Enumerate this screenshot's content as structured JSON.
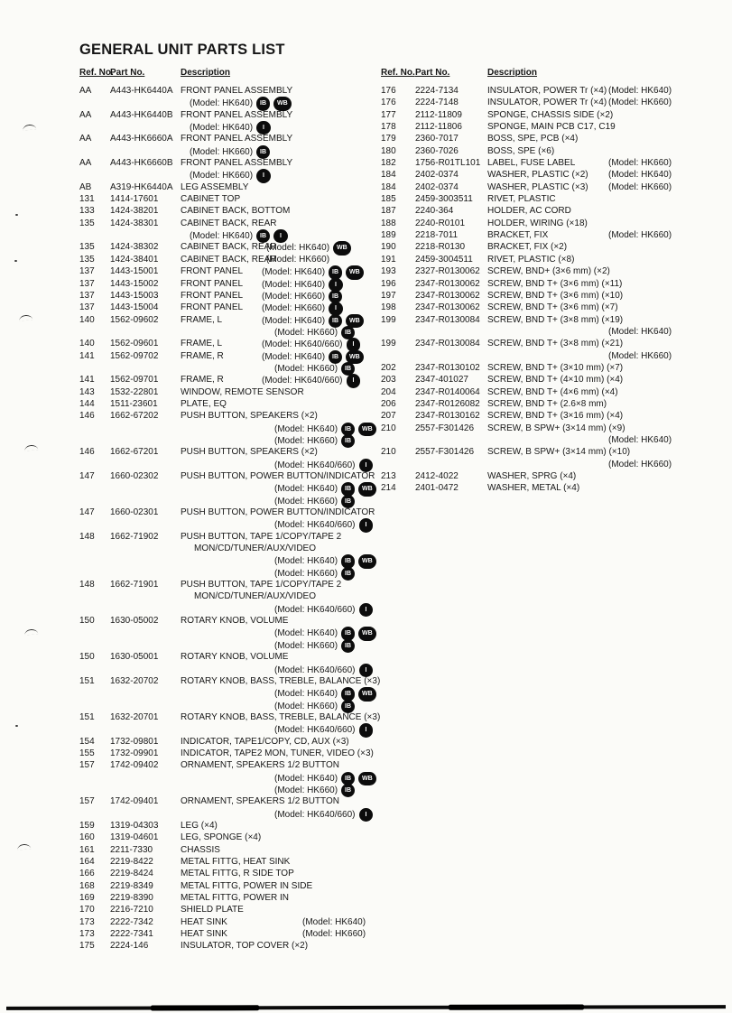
{
  "page": {
    "title": "GENERAL UNIT PARTS LIST",
    "headers": {
      "ref": "Ref. No.",
      "part": "Part No.",
      "desc": "Description"
    }
  },
  "badge_style": {
    "bg": "#0c0c0c",
    "fg": "#ffffff"
  },
  "columns": [
    {
      "name": "left",
      "lines": [
        {
          "ref": "AA",
          "part": "A443-HK6440A",
          "desc": "FRONT PANEL ASSEMBLY"
        },
        {
          "model": "(Model: HK640)",
          "modelx": 122,
          "badges": [
            "IB",
            "WB"
          ]
        },
        {
          "ref": "AA",
          "part": "A443-HK6440B",
          "desc": "FRONT PANEL ASSEMBLY"
        },
        {
          "model": "(Model: HK640)",
          "modelx": 122,
          "badges": [
            "I"
          ]
        },
        {
          "ref": "AA",
          "part": "A443-HK6660A",
          "desc": "FRONT PANEL ASSEMBLY"
        },
        {
          "model": "(Model: HK660)",
          "modelx": 122,
          "badges": [
            "IB"
          ]
        },
        {
          "ref": "AA",
          "part": "A443-HK6660B",
          "desc": "FRONT PANEL ASSEMBLY"
        },
        {
          "model": "(Model: HK660)",
          "modelx": 122,
          "badges": [
            "I"
          ]
        },
        {
          "ref": "AB",
          "part": "A319-HK6440A",
          "desc": "LEG ASSEMBLY"
        },
        {
          "ref": "131",
          "part": "1414-17601",
          "desc": "CABINET TOP"
        },
        {
          "ref": "133",
          "part": "1424-38201",
          "desc": "CABINET BACK, BOTTOM"
        },
        {
          "ref": "135",
          "part": "1424-38301",
          "desc": "CABINET BACK, REAR"
        },
        {
          "model": "(Model: HK640)",
          "modelx": 122,
          "badges": [
            "IB",
            "I"
          ]
        },
        {
          "ref": "135",
          "part": "1424-38302",
          "desc": "CABINET BACK, REAR",
          "model": "(Model: HK640)",
          "modelx": 207,
          "badges": [
            "WB"
          ]
        },
        {
          "ref": "135",
          "part": "1424-38401",
          "desc": "CABINET BACK, REAR",
          "model": "(Model: HK660)",
          "modelx": 207
        },
        {
          "ref": "137",
          "part": "1443-15001",
          "desc": "FRONT PANEL",
          "model": "(Model: HK640)",
          "modelx": 202,
          "badges": [
            "IB",
            "WB"
          ]
        },
        {
          "ref": "137",
          "part": "1443-15002",
          "desc": "FRONT PANEL",
          "model": "(Model: HK640)",
          "modelx": 202,
          "badges": [
            "I"
          ]
        },
        {
          "ref": "137",
          "part": "1443-15003",
          "desc": "FRONT PANEL",
          "model": "(Model: HK660)",
          "modelx": 202,
          "badges": [
            "IB"
          ]
        },
        {
          "ref": "137",
          "part": "1443-15004",
          "desc": "FRONT PANEL",
          "model": "(Model: HK660)",
          "modelx": 202,
          "badges": [
            "I"
          ]
        },
        {
          "ref": "140",
          "part": "1562-09602",
          "desc": "FRAME, L",
          "model": "(Model: HK640)",
          "modelx": 202,
          "badges": [
            "IB",
            "WB"
          ]
        },
        {
          "model": "(Model: HK660)",
          "modelx": 216,
          "badges": [
            "IB"
          ]
        },
        {
          "ref": "140",
          "part": "1562-09601",
          "desc": "FRAME, L",
          "model": "(Model: HK640/660)",
          "modelx": 202,
          "badges": [
            "I"
          ]
        },
        {
          "ref": "141",
          "part": "1562-09702",
          "desc": "FRAME, R",
          "model": "(Model: HK640)",
          "modelx": 202,
          "badges": [
            "IB",
            "WB"
          ]
        },
        {
          "model": "(Model: HK660)",
          "modelx": 216,
          "badges": [
            "IB"
          ]
        },
        {
          "ref": "141",
          "part": "1562-09701",
          "desc": "FRAME, R",
          "model": "(Model: HK640/660)",
          "modelx": 202,
          "badges": [
            "I"
          ]
        },
        {
          "ref": "143",
          "part": "1532-22801",
          "desc": "WINDOW, REMOTE SENSOR"
        },
        {
          "ref": "144",
          "part": "1511-23601",
          "desc": "PLATE, EQ"
        },
        {
          "ref": "146",
          "part": "1662-67202",
          "desc": "PUSH BUTTON, SPEAKERS (×2)"
        },
        {
          "model": "(Model: HK640)",
          "modelx": 216,
          "badges": [
            "IB",
            "WB"
          ]
        },
        {
          "model": "(Model: HK660)",
          "modelx": 216,
          "badges": [
            "IB"
          ]
        },
        {
          "ref": "146",
          "part": "1662-67201",
          "desc": "PUSH BUTTON, SPEAKERS (×2)"
        },
        {
          "model": "(Model: HK640/660)",
          "modelx": 216,
          "badges": [
            "I"
          ]
        },
        {
          "ref": "147",
          "part": "1660-02302",
          "desc": "PUSH BUTTON, POWER BUTTON/INDICATOR"
        },
        {
          "model": "(Model: HK640)",
          "modelx": 216,
          "badges": [
            "IB",
            "WB"
          ]
        },
        {
          "model": "(Model: HK660)",
          "modelx": 216,
          "badges": [
            "IB"
          ]
        },
        {
          "ref": "147",
          "part": "1660-02301",
          "desc": "PUSH BUTTON, POWER BUTTON/INDICATOR"
        },
        {
          "model": "(Model: HK640/660)",
          "modelx": 216,
          "badges": [
            "I"
          ]
        },
        {
          "ref": "148",
          "part": "1662-71902",
          "desc": "PUSH BUTTON, TAPE 1/COPY/TAPE 2"
        },
        {
          "desc": "MON/CD/TUNER/AUX/VIDEO",
          "descx": 127
        },
        {
          "model": "(Model: HK640)",
          "modelx": 216,
          "badges": [
            "IB",
            "WB"
          ]
        },
        {
          "model": "(Model: HK660)",
          "modelx": 216,
          "badges": [
            "IB"
          ]
        },
        {
          "ref": "148",
          "part": "1662-71901",
          "desc": "PUSH BUTTON, TAPE 1/COPY/TAPE 2"
        },
        {
          "desc": "MON/CD/TUNER/AUX/VIDEO",
          "descx": 127
        },
        {
          "model": "(Model: HK640/660)",
          "modelx": 216,
          "badges": [
            "I"
          ]
        },
        {
          "ref": "150",
          "part": "1630-05002",
          "desc": "ROTARY KNOB, VOLUME"
        },
        {
          "model": "(Model: HK640)",
          "modelx": 216,
          "badges": [
            "IB",
            "WB"
          ]
        },
        {
          "model": "(Model: HK660)",
          "modelx": 216,
          "badges": [
            "IB"
          ]
        },
        {
          "ref": "150",
          "part": "1630-05001",
          "desc": "ROTARY KNOB, VOLUME"
        },
        {
          "model": "(Model: HK640/660)",
          "modelx": 216,
          "badges": [
            "I"
          ]
        },
        {
          "ref": "151",
          "part": "1632-20702",
          "desc": "ROTARY KNOB, BASS, TREBLE, BALANCE (×3)"
        },
        {
          "model": "(Model: HK640)",
          "modelx": 216,
          "badges": [
            "IB",
            "WB"
          ]
        },
        {
          "model": "(Model: HK660)",
          "modelx": 216,
          "badges": [
            "IB"
          ]
        },
        {
          "ref": "151",
          "part": "1632-20701",
          "desc": "ROTARY KNOB, BASS, TREBLE, BALANCE (×3)"
        },
        {
          "model": "(Model: HK640/660)",
          "modelx": 216,
          "badges": [
            "I"
          ]
        },
        {
          "ref": "154",
          "part": "1732-09801",
          "desc": "INDICATOR, TAPE1/COPY, CD, AUX (×3)"
        },
        {
          "ref": "155",
          "part": "1732-09901",
          "desc": "INDICATOR, TAPE2 MON, TUNER, VIDEO (×3)"
        },
        {
          "ref": "157",
          "part": "1742-09402",
          "desc": "ORNAMENT, SPEAKERS 1/2 BUTTON"
        },
        {
          "model": "(Model: HK640)",
          "modelx": 216,
          "badges": [
            "IB",
            "WB"
          ]
        },
        {
          "model": "(Model: HK660)",
          "modelx": 216,
          "badges": [
            "IB"
          ]
        },
        {
          "ref": "157",
          "part": "1742-09401",
          "desc": "ORNAMENT, SPEAKERS 1/2 BUTTON"
        },
        {
          "model": "(Model: HK640/660)",
          "modelx": 216,
          "badges": [
            "I"
          ]
        },
        {
          "ref": "159",
          "part": "1319-04303",
          "desc": "LEG (×4)"
        },
        {
          "ref": "160",
          "part": "1319-04601",
          "desc": "LEG, SPONGE (×4)"
        },
        {
          "ref": "161",
          "part": "2211-7330",
          "desc": "CHASSIS"
        },
        {
          "ref": "164",
          "part": "2219-8422",
          "desc": "METAL FITTG, HEAT SINK"
        },
        {
          "ref": "166",
          "part": "2219-8424",
          "desc": "METAL FITTG, R SIDE TOP"
        },
        {
          "ref": "168",
          "part": "2219-8349",
          "desc": "METAL FITTG, POWER IN SIDE"
        },
        {
          "ref": "169",
          "part": "2219-8390",
          "desc": "METAL FITTG, POWER IN"
        },
        {
          "ref": "170",
          "part": "2216-7210",
          "desc": "SHIELD PLATE"
        },
        {
          "ref": "173",
          "part": "2222-7342",
          "desc": "HEAT SINK",
          "model": "(Model: HK640)",
          "modelx": 247
        },
        {
          "ref": "173",
          "part": "2222-7341",
          "desc": "HEAT SINK",
          "model": "(Model: HK660)",
          "modelx": 247
        },
        {
          "ref": "175",
          "part": "2224-146",
          "desc": "INSULATOR, TOP COVER (×2)"
        }
      ]
    },
    {
      "name": "right",
      "lines": [
        {
          "ref": "176",
          "part": "2224-7134",
          "desc": "INSULATOR, POWER Tr (×4)",
          "model": "(Model: HK640)",
          "modelx": 252
        },
        {
          "ref": "176",
          "part": "2224-7148",
          "desc": "INSULATOR, POWER Tr (×4)",
          "model": "(Model: HK660)",
          "modelx": 252
        },
        {
          "ref": "177",
          "part": "2112-11809",
          "desc": "SPONGE, CHASSIS SIDE (×2)"
        },
        {
          "ref": "178",
          "part": "2112-11806",
          "desc": "SPONGE, MAIN PCB C17, C19"
        },
        {
          "ref": "179",
          "part": "2360-7017",
          "desc": "BOSS, SPE, PCB (×4)"
        },
        {
          "ref": "180",
          "part": "2360-7026",
          "desc": "BOSS, SPE (×6)"
        },
        {
          "ref": "182",
          "part": "1756-R01TL101",
          "desc": "LABEL, FUSE LABEL",
          "model": "(Model: HK660)",
          "modelx": 252
        },
        {
          "ref": "184",
          "part": "2402-0374",
          "desc": "WASHER, PLASTIC (×2)",
          "model": "(Model: HK640)",
          "modelx": 252
        },
        {
          "ref": "184",
          "part": "2402-0374",
          "desc": "WASHER, PLASTIC (×3)",
          "model": "(Model: HK660)",
          "modelx": 252
        },
        {
          "ref": "185",
          "part": "2459-3003511",
          "desc": "RIVET, PLASTIC"
        },
        {
          "ref": "187",
          "part": "2240-364",
          "desc": "HOLDER, AC CORD"
        },
        {
          "ref": "188",
          "part": "2240-R0101",
          "desc": "HOLDER, WIRING (×18)"
        },
        {
          "ref": "189",
          "part": "2218-7011",
          "desc": "BRACKET, FIX",
          "model": "(Model: HK660)",
          "modelx": 252
        },
        {
          "ref": "190",
          "part": "2218-R0130",
          "desc": "BRACKET, FIX (×2)"
        },
        {
          "ref": "191",
          "part": "2459-3004511",
          "desc": "RIVET, PLASTIC (×8)"
        },
        {
          "ref": "193",
          "part": "2327-R0130062",
          "desc": "SCREW, BND+ (3×6 mm) (×2)"
        },
        {
          "ref": "196",
          "part": "2347-R0130062",
          "desc": "SCREW, BND T+ (3×6 mm) (×11)"
        },
        {
          "ref": "197",
          "part": "2347-R0130062",
          "desc": "SCREW, BND T+ (3×6 mm) (×10)"
        },
        {
          "ref": "198",
          "part": "2347-R0130062",
          "desc": "SCREW, BND T+ (3×6 mm) (×7)"
        },
        {
          "ref": "199",
          "part": "2347-R0130084",
          "desc": "SCREW, BND T+ (3×8 mm) (×19)"
        },
        {
          "model": "(Model: HK640)",
          "modelx": 252
        },
        {
          "ref": "199",
          "part": "2347-R0130084",
          "desc": "SCREW, BND T+ (3×8 mm) (×21)"
        },
        {
          "model": "(Model: HK660)",
          "modelx": 252
        },
        {
          "ref": "202",
          "part": "2347-R0130102",
          "desc": "SCREW, BND T+ (3×10 mm) (×7)"
        },
        {
          "ref": "203",
          "part": "2347-401027",
          "desc": "SCREW, BND T+ (4×10 mm) (×4)"
        },
        {
          "ref": "204",
          "part": "2347-R0140064",
          "desc": "SCREW, BND T+ (4×6 mm) (×4)"
        },
        {
          "ref": "206",
          "part": "2347-R0126082",
          "desc": "SCREW, BND T+ (2.6×8 mm)"
        },
        {
          "ref": "207",
          "part": "2347-R0130162",
          "desc": "SCREW, BND T+ (3×16 mm) (×4)"
        },
        {
          "ref": "210",
          "part": "2557-F301426",
          "desc": "SCREW, B SPW+ (3×14 mm) (×9)"
        },
        {
          "model": "(Model: HK640)",
          "modelx": 252
        },
        {
          "ref": "210",
          "part": "2557-F301426",
          "desc": "SCREW, B SPW+ (3×14 mm) (×10)"
        },
        {
          "model": "(Model: HK660)",
          "modelx": 252
        },
        {
          "ref": "213",
          "part": "2412-4022",
          "desc": "WASHER, SPRG (×4)"
        },
        {
          "ref": "214",
          "part": "2401-0472",
          "desc": "WASHER, METAL (×4)"
        }
      ]
    }
  ]
}
